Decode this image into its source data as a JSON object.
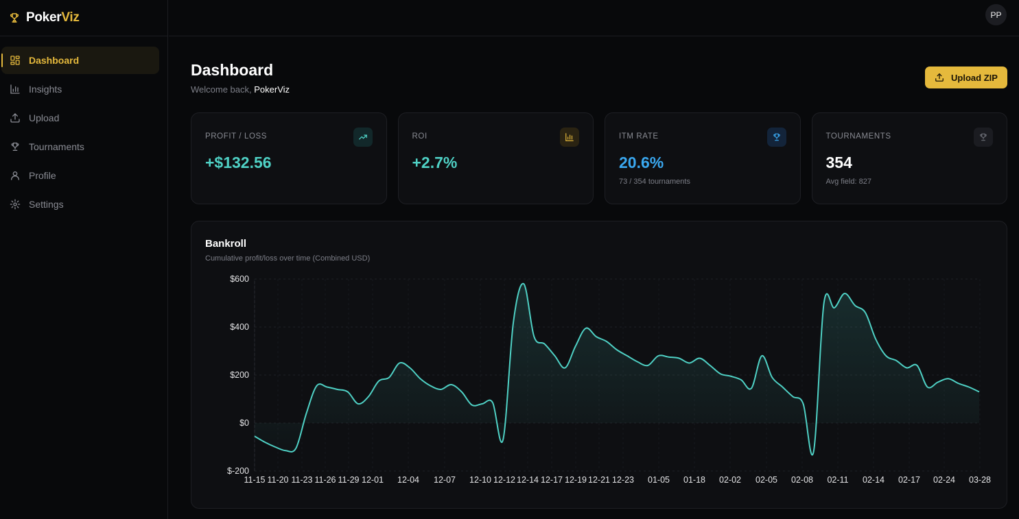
{
  "brand": {
    "name_part1": "Poker",
    "name_part2": "Viz"
  },
  "header": {
    "avatar_initials": "PP"
  },
  "sidebar": {
    "items": [
      {
        "label": "Dashboard",
        "icon": "grid-icon",
        "active": true
      },
      {
        "label": "Insights",
        "icon": "bar-chart-icon"
      },
      {
        "label": "Upload",
        "icon": "upload-icon"
      },
      {
        "label": "Tournaments",
        "icon": "trophy-icon"
      },
      {
        "label": "Profile",
        "icon": "user-icon"
      },
      {
        "label": "Settings",
        "icon": "gear-icon"
      }
    ]
  },
  "page": {
    "title": "Dashboard",
    "welcome_prefix": "Welcome back, ",
    "welcome_user": "PokerViz",
    "upload_label": "Upload ZIP"
  },
  "stats": [
    {
      "label": "PROFIT / LOSS",
      "value": "+$132.56",
      "sub": "",
      "color": "#4fd1c5",
      "icon": "trending-up-icon"
    },
    {
      "label": "ROI",
      "value": "+2.7%",
      "sub": "",
      "color": "#4fd1c5",
      "icon": "bar-chart-icon"
    },
    {
      "label": "ITM RATE",
      "value": "20.6%",
      "sub": "73 / 354 tournaments",
      "color": "#3aa8f0",
      "icon": "trophy-icon"
    },
    {
      "label": "TOURNAMENTS",
      "value": "354",
      "sub": "Avg field: 827",
      "color": "#ffffff",
      "icon": "trophy-icon"
    }
  ],
  "colors": {
    "accent": "#e5b93c",
    "positive": "#4fd1c5",
    "info": "#3aa8f0",
    "line": "#4fd1c5"
  },
  "chart_data": {
    "type": "area",
    "title": "Bankroll",
    "subtitle": "Cumulative profit/loss over time (Combined USD)",
    "xlabel": "",
    "ylabel": "",
    "ylim": [
      -200,
      600
    ],
    "yticks": [
      "$600",
      "$400",
      "$200",
      "$0",
      "$-200"
    ],
    "ytick_values": [
      600,
      400,
      200,
      0,
      -200
    ],
    "xtick_labels": [
      "11-15",
      "11-20",
      "11-23",
      "11-26",
      "11-29",
      "12-01",
      "12-04",
      "12-07",
      "12-10",
      "12-12",
      "12-14",
      "12-17",
      "12-19",
      "12-21",
      "12-23",
      "01-05",
      "01-18",
      "02-02",
      "02-05",
      "02-08",
      "02-11",
      "02-14",
      "02-17",
      "02-24",
      "03-28"
    ],
    "grid": true,
    "series": [
      {
        "values": [
          -55,
          -80,
          -100,
          -115,
          -105,
          40,
          155,
          150,
          140,
          130,
          80,
          110,
          175,
          190,
          250,
          230,
          185,
          155,
          140,
          160,
          130,
          75,
          80,
          85,
          -70,
          420,
          580,
          360,
          330,
          280,
          230,
          320,
          395,
          360,
          340,
          305,
          280,
          255,
          240,
          280,
          275,
          270,
          250,
          270,
          240,
          205,
          195,
          180,
          145,
          280,
          190,
          150,
          110,
          80,
          -120,
          500,
          480,
          540,
          490,
          460,
          350,
          280,
          260,
          230,
          240,
          150,
          170,
          185,
          165,
          150,
          130
        ]
      }
    ]
  }
}
